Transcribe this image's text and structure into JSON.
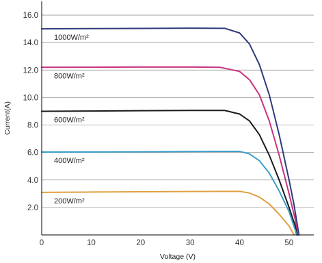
{
  "chart_data": {
    "type": "line",
    "xlabel": "Voltage  (V)",
    "ylabel": "Current(A)",
    "xlim": [
      0,
      55
    ],
    "ylim": [
      0,
      17
    ],
    "x_ticks": [
      0,
      10,
      20,
      30,
      40,
      50
    ],
    "x_tick_labels": [
      "0",
      "10",
      "20",
      "30",
      "40",
      "50"
    ],
    "y_ticks": [
      2,
      4,
      6,
      8,
      10,
      12,
      14,
      16
    ],
    "y_tick_labels": [
      "2.0",
      "4.0",
      "6.0",
      "8.0",
      "10.0",
      "12.0",
      "14.0",
      "16.0"
    ],
    "grid": {
      "horizontal": true,
      "vertical": false
    },
    "series": [
      {
        "name": "1000W/m²",
        "color": "#2e3a7c",
        "points": [
          [
            0,
            15.0
          ],
          [
            10,
            15.02
          ],
          [
            20,
            15.03
          ],
          [
            30,
            15.05
          ],
          [
            37,
            15.04
          ],
          [
            40,
            14.7
          ],
          [
            42,
            13.9
          ],
          [
            44,
            12.4
          ],
          [
            46,
            10.2
          ],
          [
            48,
            7.3
          ],
          [
            50,
            4.0
          ],
          [
            51,
            2.2
          ],
          [
            52,
            0.0
          ]
        ]
      },
      {
        "name": "800W/m²",
        "color": "#c8327e",
        "points": [
          [
            0,
            12.2
          ],
          [
            10,
            12.21
          ],
          [
            20,
            12.22
          ],
          [
            30,
            12.22
          ],
          [
            36,
            12.2
          ],
          [
            40,
            11.9
          ],
          [
            42,
            11.3
          ],
          [
            44,
            10.2
          ],
          [
            46,
            8.3
          ],
          [
            48,
            5.8
          ],
          [
            50,
            3.0
          ],
          [
            51.2,
            1.2
          ],
          [
            51.8,
            0.0
          ]
        ]
      },
      {
        "name": "600W/m²",
        "color": "#1a1a1a",
        "points": [
          [
            0,
            9.0
          ],
          [
            10,
            9.02
          ],
          [
            20,
            9.04
          ],
          [
            30,
            9.06
          ],
          [
            37,
            9.06
          ],
          [
            40,
            8.8
          ],
          [
            42,
            8.3
          ],
          [
            44,
            7.3
          ],
          [
            46,
            5.8
          ],
          [
            48,
            4.0
          ],
          [
            50,
            2.0
          ],
          [
            51.2,
            0.7
          ],
          [
            51.6,
            0.0
          ]
        ]
      },
      {
        "name": "400W/m²",
        "color": "#3b9dc9",
        "points": [
          [
            0,
            6.03
          ],
          [
            10,
            6.04
          ],
          [
            20,
            6.05
          ],
          [
            30,
            6.07
          ],
          [
            40,
            6.08
          ],
          [
            42,
            5.9
          ],
          [
            44,
            5.4
          ],
          [
            46,
            4.5
          ],
          [
            48,
            3.2
          ],
          [
            50,
            1.7
          ],
          [
            51.3,
            0.3
          ],
          [
            51.5,
            0.0
          ]
        ]
      },
      {
        "name": "200W/m²",
        "color": "#e0a040",
        "points": [
          [
            0,
            3.1
          ],
          [
            10,
            3.12
          ],
          [
            20,
            3.14
          ],
          [
            30,
            3.16
          ],
          [
            40,
            3.17
          ],
          [
            42,
            3.05
          ],
          [
            44,
            2.75
          ],
          [
            46,
            2.25
          ],
          [
            48,
            1.5
          ],
          [
            50,
            0.65
          ],
          [
            51,
            0.0
          ]
        ]
      }
    ],
    "annotations": [
      {
        "text": "1000W/m²",
        "series": "1000W/m²"
      },
      {
        "text": "800W/m²",
        "series": "800W/m²"
      },
      {
        "text": "600W/m²",
        "series": "600W/m²"
      },
      {
        "text": "400W/m²",
        "series": "400W/m²"
      },
      {
        "text": "200W/m²",
        "series": "200W/m²"
      }
    ]
  }
}
